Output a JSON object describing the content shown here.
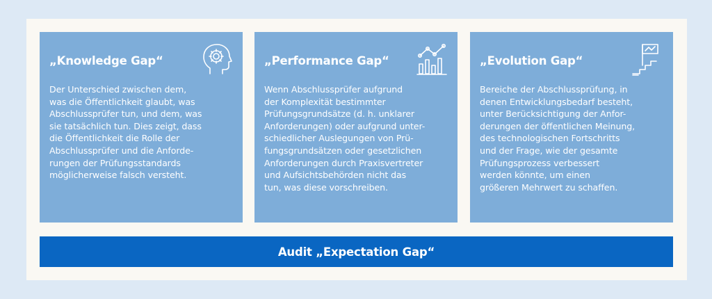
{
  "cards": [
    {
      "title": "„Knowledge Gap“",
      "icon": "head-gear-icon",
      "text": "Der Unterschied zwischen dem,\nwas die Öffentlichkeit glaubt, was\nAbschlussprüfer tun, und dem, was\nsie tatsächlich tun. Dies zeigt, dass\ndie Öffentlichkeit die Rolle der\n Abschlussprüfer und die Anforde-\nrungen der Prüfungsstandards\nmöglicherweise falsch versteht."
    },
    {
      "title": "„Performance Gap“",
      "icon": "bar-chart-trend-icon",
      "text": "Wenn Abschlussprüfer aufgrund\nder Komplexität bestimmter\nPrüfungsgrundsätze (d. h. unklarer\nAnforderungen) oder aufgrund unter-\nschiedlicher Auslegungen von Prü-\nfungsgrundsätzen oder gesetzlichen\nAnforderungen durch Praxisvertreter\nund Aufsichtsbehörden nicht das\ntun, was diese vorschreiben."
    },
    {
      "title": "„Evolution Gap“",
      "icon": "stairs-flag-icon",
      "text": "Bereiche der Abschlussprüfung, in\ndenen Entwicklungsbedarf besteht,\nunter Berücksichtigung der Anfor-\nderungen der öffentlichen Meinung,\ndes technologischen Fortschritts\nund der Frage, wie der gesamte\nPrüfungsprozess verbessert\nwerden könnte, um einen\ngrößeren Mehrwert zu schaffen."
    }
  ],
  "footer": {
    "label": "Audit „Expectation Gap“"
  },
  "colors": {
    "page_background": "#dde9f5",
    "frame_background": "#faf8f3",
    "card_background": "#7eadd9",
    "footer_background": "#0a66c2",
    "text": "#ffffff"
  }
}
